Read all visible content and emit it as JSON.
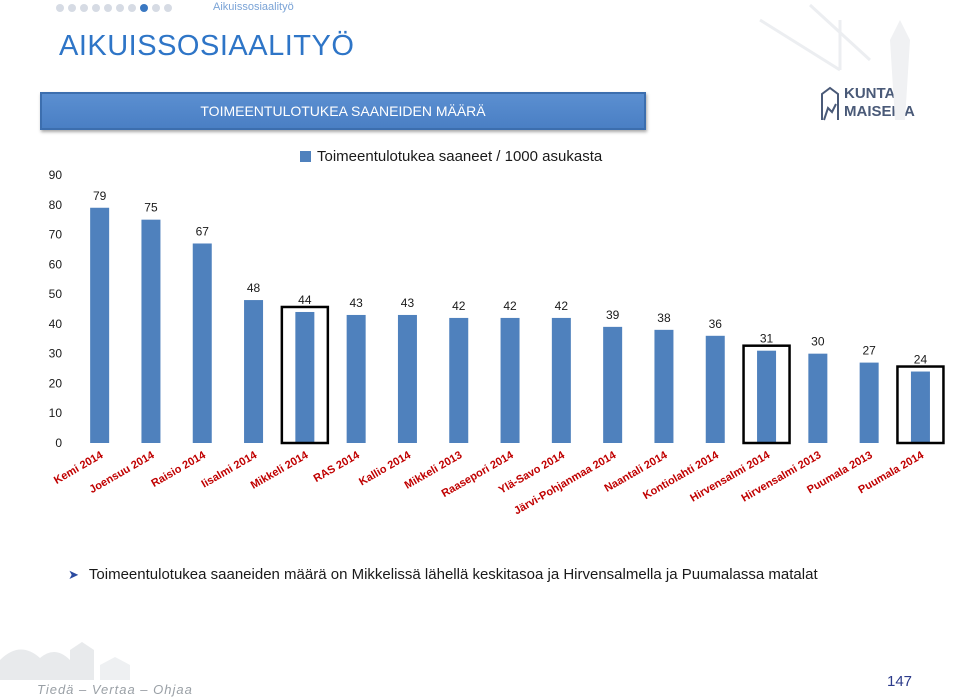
{
  "nav": {
    "breadcrumb": "Aikuissosiaalityö",
    "dots_total": 10,
    "active_dot": 8
  },
  "page": {
    "title": "AIKUISSOSIAALITYÖ",
    "number": "147"
  },
  "banner": {
    "text": "TOIMEENTULOTUKEA SAANEIDEN MÄÄRÄ"
  },
  "logo": {
    "line1": "KUNTA",
    "line2": "MAISEMA"
  },
  "footer": {
    "tagline": "Tiedä – Vertaa – Ohjaa"
  },
  "caption": {
    "text": "Toimeentulotukea saaneiden määrä on Mikkelissä lähellä keskitasoa ja Hirvensalmella ja Puumalassa matalat"
  },
  "colors": {
    "bar": "#4f81bd",
    "highlight_border": "#000000",
    "title": "#2e75c7"
  },
  "chart_data": {
    "type": "bar",
    "categories": [
      "Kemi 2014",
      "Joensuu 2014",
      "Raisio 2014",
      "Iisalmi 2014",
      "Mikkeli 2014",
      "RAS 2014",
      "Kallio 2014",
      "Mikkeli 2013",
      "Raasepori 2014",
      "Ylä-Savo 2014",
      "Järvi-Pohjanmaa 2014",
      "Naantali 2014",
      "Kontiolahti 2014",
      "Hirvensalmi 2014",
      "Hirvensalmi 2013",
      "Puumala 2013",
      "Puumala 2014"
    ],
    "series": [
      {
        "name": "Toimeentulotukea saaneet / 1000 asukasta",
        "values": [
          79,
          75,
          67,
          48,
          44,
          43,
          43,
          42,
          42,
          42,
          39,
          38,
          36,
          31,
          30,
          27,
          24
        ]
      }
    ],
    "highlighted": [
      "Mikkeli 2014",
      "Hirvensalmi 2014",
      "Puumala 2014"
    ],
    "ylim": [
      0,
      90
    ],
    "yticks": [
      0,
      10,
      20,
      30,
      40,
      50,
      60,
      70,
      80,
      90
    ],
    "legend": "top",
    "grid": false
  }
}
